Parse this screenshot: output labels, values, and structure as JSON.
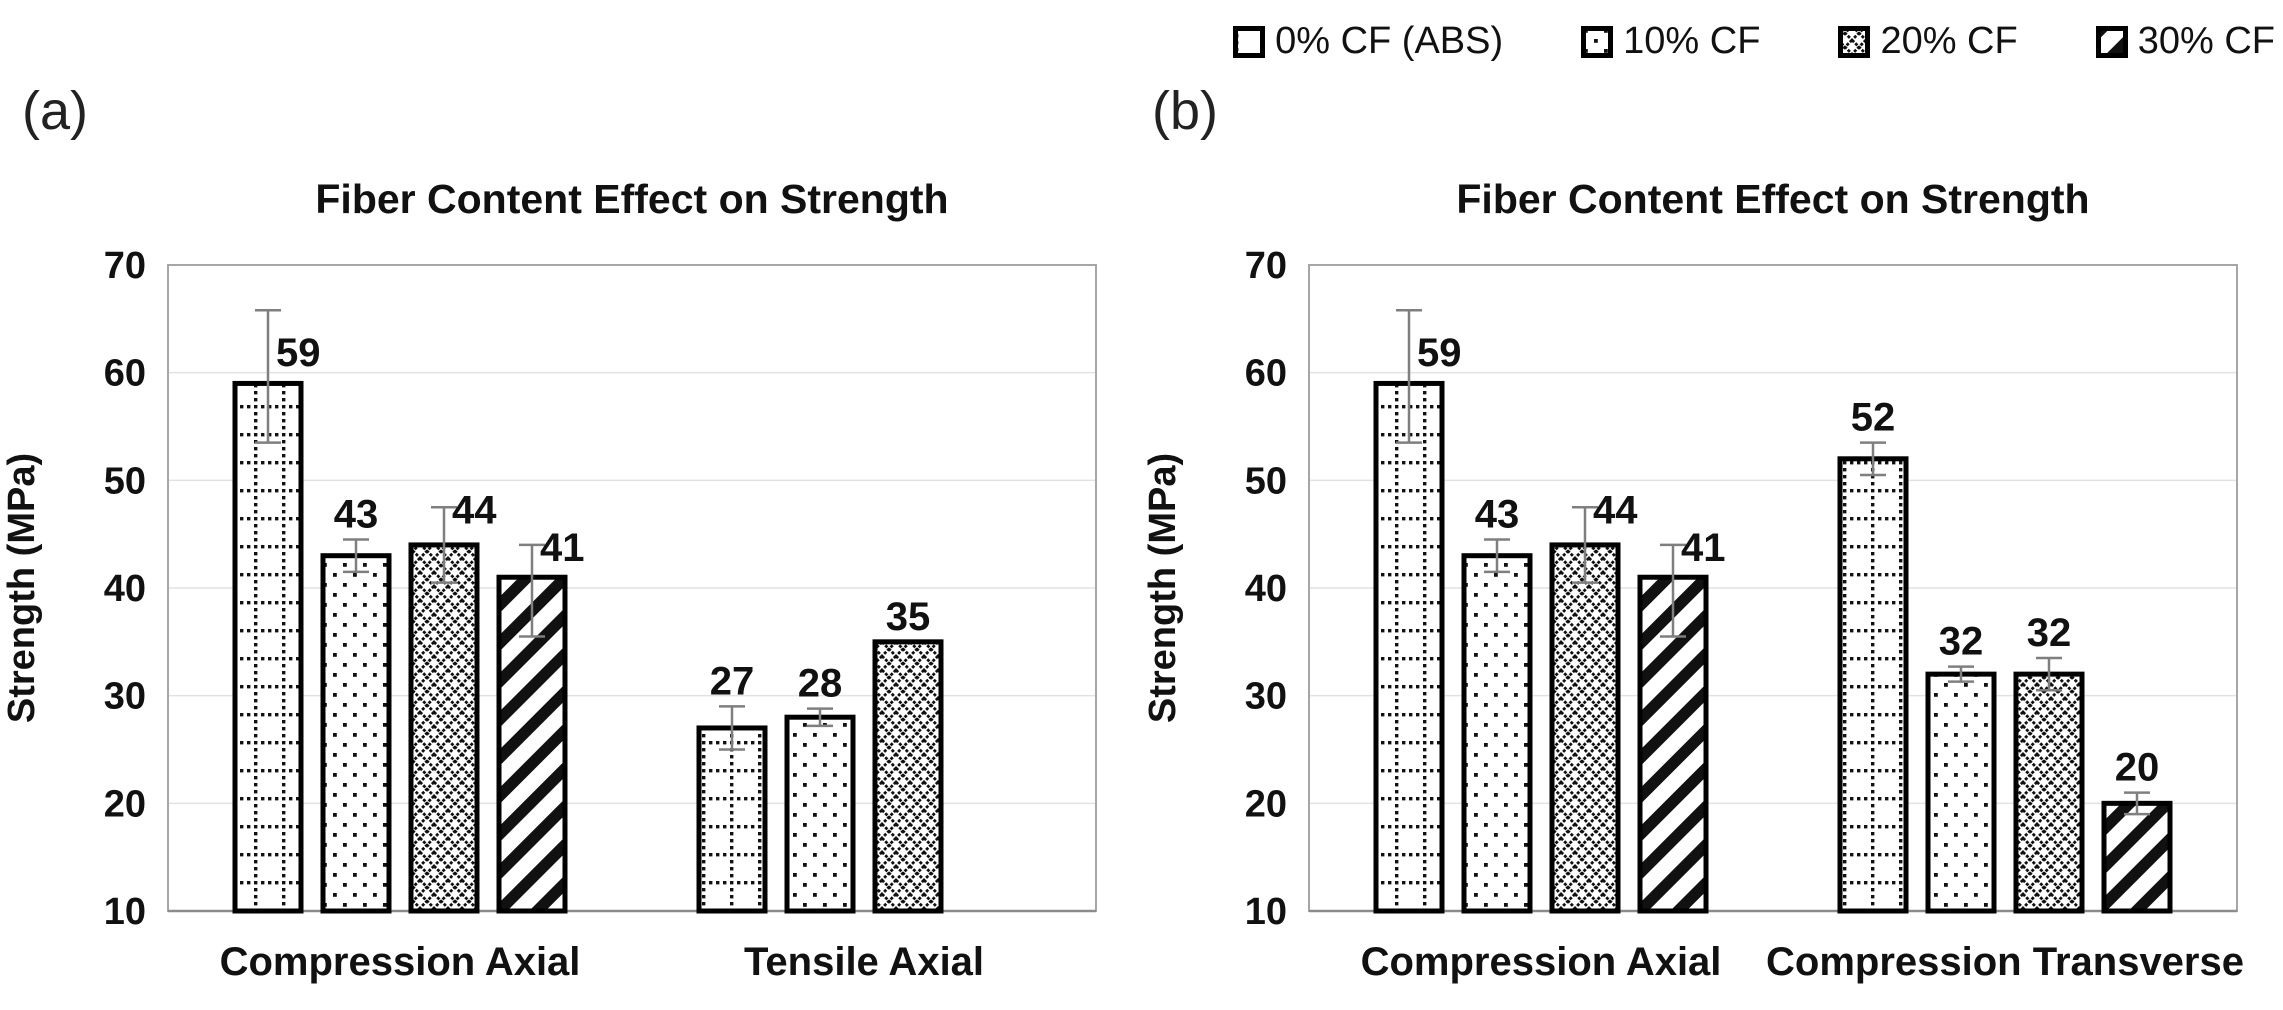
{
  "figure": {
    "background": "#ffffff",
    "panel_labels": {
      "a": "(a)",
      "b": "(b)"
    }
  },
  "legend": {
    "position": "top-right",
    "items": [
      {
        "label": "0% CF (ABS)",
        "pattern": "dotted-grid"
      },
      {
        "label": "10% CF",
        "pattern": "dots"
      },
      {
        "label": "20% CF",
        "pattern": "diamond-mesh"
      },
      {
        "label": "30% CF",
        "pattern": "diagonal-stripes"
      }
    ]
  },
  "colors": {
    "bar_fill": "#ffffff",
    "bar_border": "#000000",
    "pattern_ink": "#111111",
    "error_bar": "#7f7f7f",
    "gridline": "#e2e2e2",
    "plot_frame": "#a6a6a6",
    "axis_line": "#8c8c8c",
    "text": "#111111"
  },
  "chart_data": [
    {
      "id": "a",
      "type": "bar",
      "panel_label": "(a)",
      "title": "Fiber Content Effect on Strength",
      "xlabel": "",
      "ylabel": "Strength (MPa)",
      "ylim": [
        10,
        70
      ],
      "yticks": [
        10,
        20,
        30,
        40,
        50,
        60,
        70
      ],
      "grid": true,
      "value_labels": true,
      "categories": [
        "Compression Axial",
        "Tensile Axial"
      ],
      "series": [
        {
          "name": "0% CF (ABS)",
          "pattern": "dotted-grid",
          "values": [
            59,
            27
          ],
          "error_plus": [
            6.8,
            2.0
          ],
          "error_minus": [
            5.5,
            2.0
          ],
          "label_side": [
            "right",
            "above"
          ]
        },
        {
          "name": "10% CF",
          "pattern": "dots",
          "values": [
            43,
            28
          ],
          "error_plus": [
            1.5,
            0.8
          ],
          "error_minus": [
            1.5,
            0.8
          ],
          "label_side": [
            "above",
            "above"
          ]
        },
        {
          "name": "20% CF",
          "pattern": "diamond-mesh",
          "values": [
            44,
            35
          ],
          "error_plus": [
            3.5,
            0
          ],
          "error_minus": [
            3.5,
            0
          ],
          "label_side": [
            "right",
            "above"
          ]
        },
        {
          "name": "30% CF",
          "pattern": "diagonal-stripes",
          "values": [
            41,
            null
          ],
          "error_plus": [
            3.0,
            null
          ],
          "error_minus": [
            5.5,
            null
          ],
          "label_side": [
            "right",
            null
          ]
        }
      ]
    },
    {
      "id": "b",
      "type": "bar",
      "panel_label": "(b)",
      "title": "Fiber Content Effect on Strength",
      "xlabel": "",
      "ylabel": "Strength (MPa)",
      "ylim": [
        10,
        70
      ],
      "yticks": [
        10,
        20,
        30,
        40,
        50,
        60,
        70
      ],
      "grid": true,
      "value_labels": true,
      "categories": [
        "Compression Axial",
        "Compression Transverse"
      ],
      "series": [
        {
          "name": "0% CF (ABS)",
          "pattern": "dotted-grid",
          "values": [
            59,
            52
          ],
          "error_plus": [
            6.8,
            1.5
          ],
          "error_minus": [
            5.5,
            1.5
          ],
          "label_side": [
            "right",
            "above"
          ]
        },
        {
          "name": "10% CF",
          "pattern": "dots",
          "values": [
            43,
            32
          ],
          "error_plus": [
            1.5,
            0.7
          ],
          "error_minus": [
            1.5,
            0.7
          ],
          "label_side": [
            "above",
            "above"
          ]
        },
        {
          "name": "20% CF",
          "pattern": "diamond-mesh",
          "values": [
            44,
            32
          ],
          "error_plus": [
            3.5,
            1.5
          ],
          "error_minus": [
            3.5,
            1.5
          ],
          "label_side": [
            "right",
            "above"
          ]
        },
        {
          "name": "30% CF",
          "pattern": "diagonal-stripes",
          "values": [
            41,
            20
          ],
          "error_plus": [
            3.0,
            1.0
          ],
          "error_minus": [
            5.5,
            1.0
          ],
          "label_side": [
            "right",
            "above"
          ]
        }
      ]
    }
  ]
}
